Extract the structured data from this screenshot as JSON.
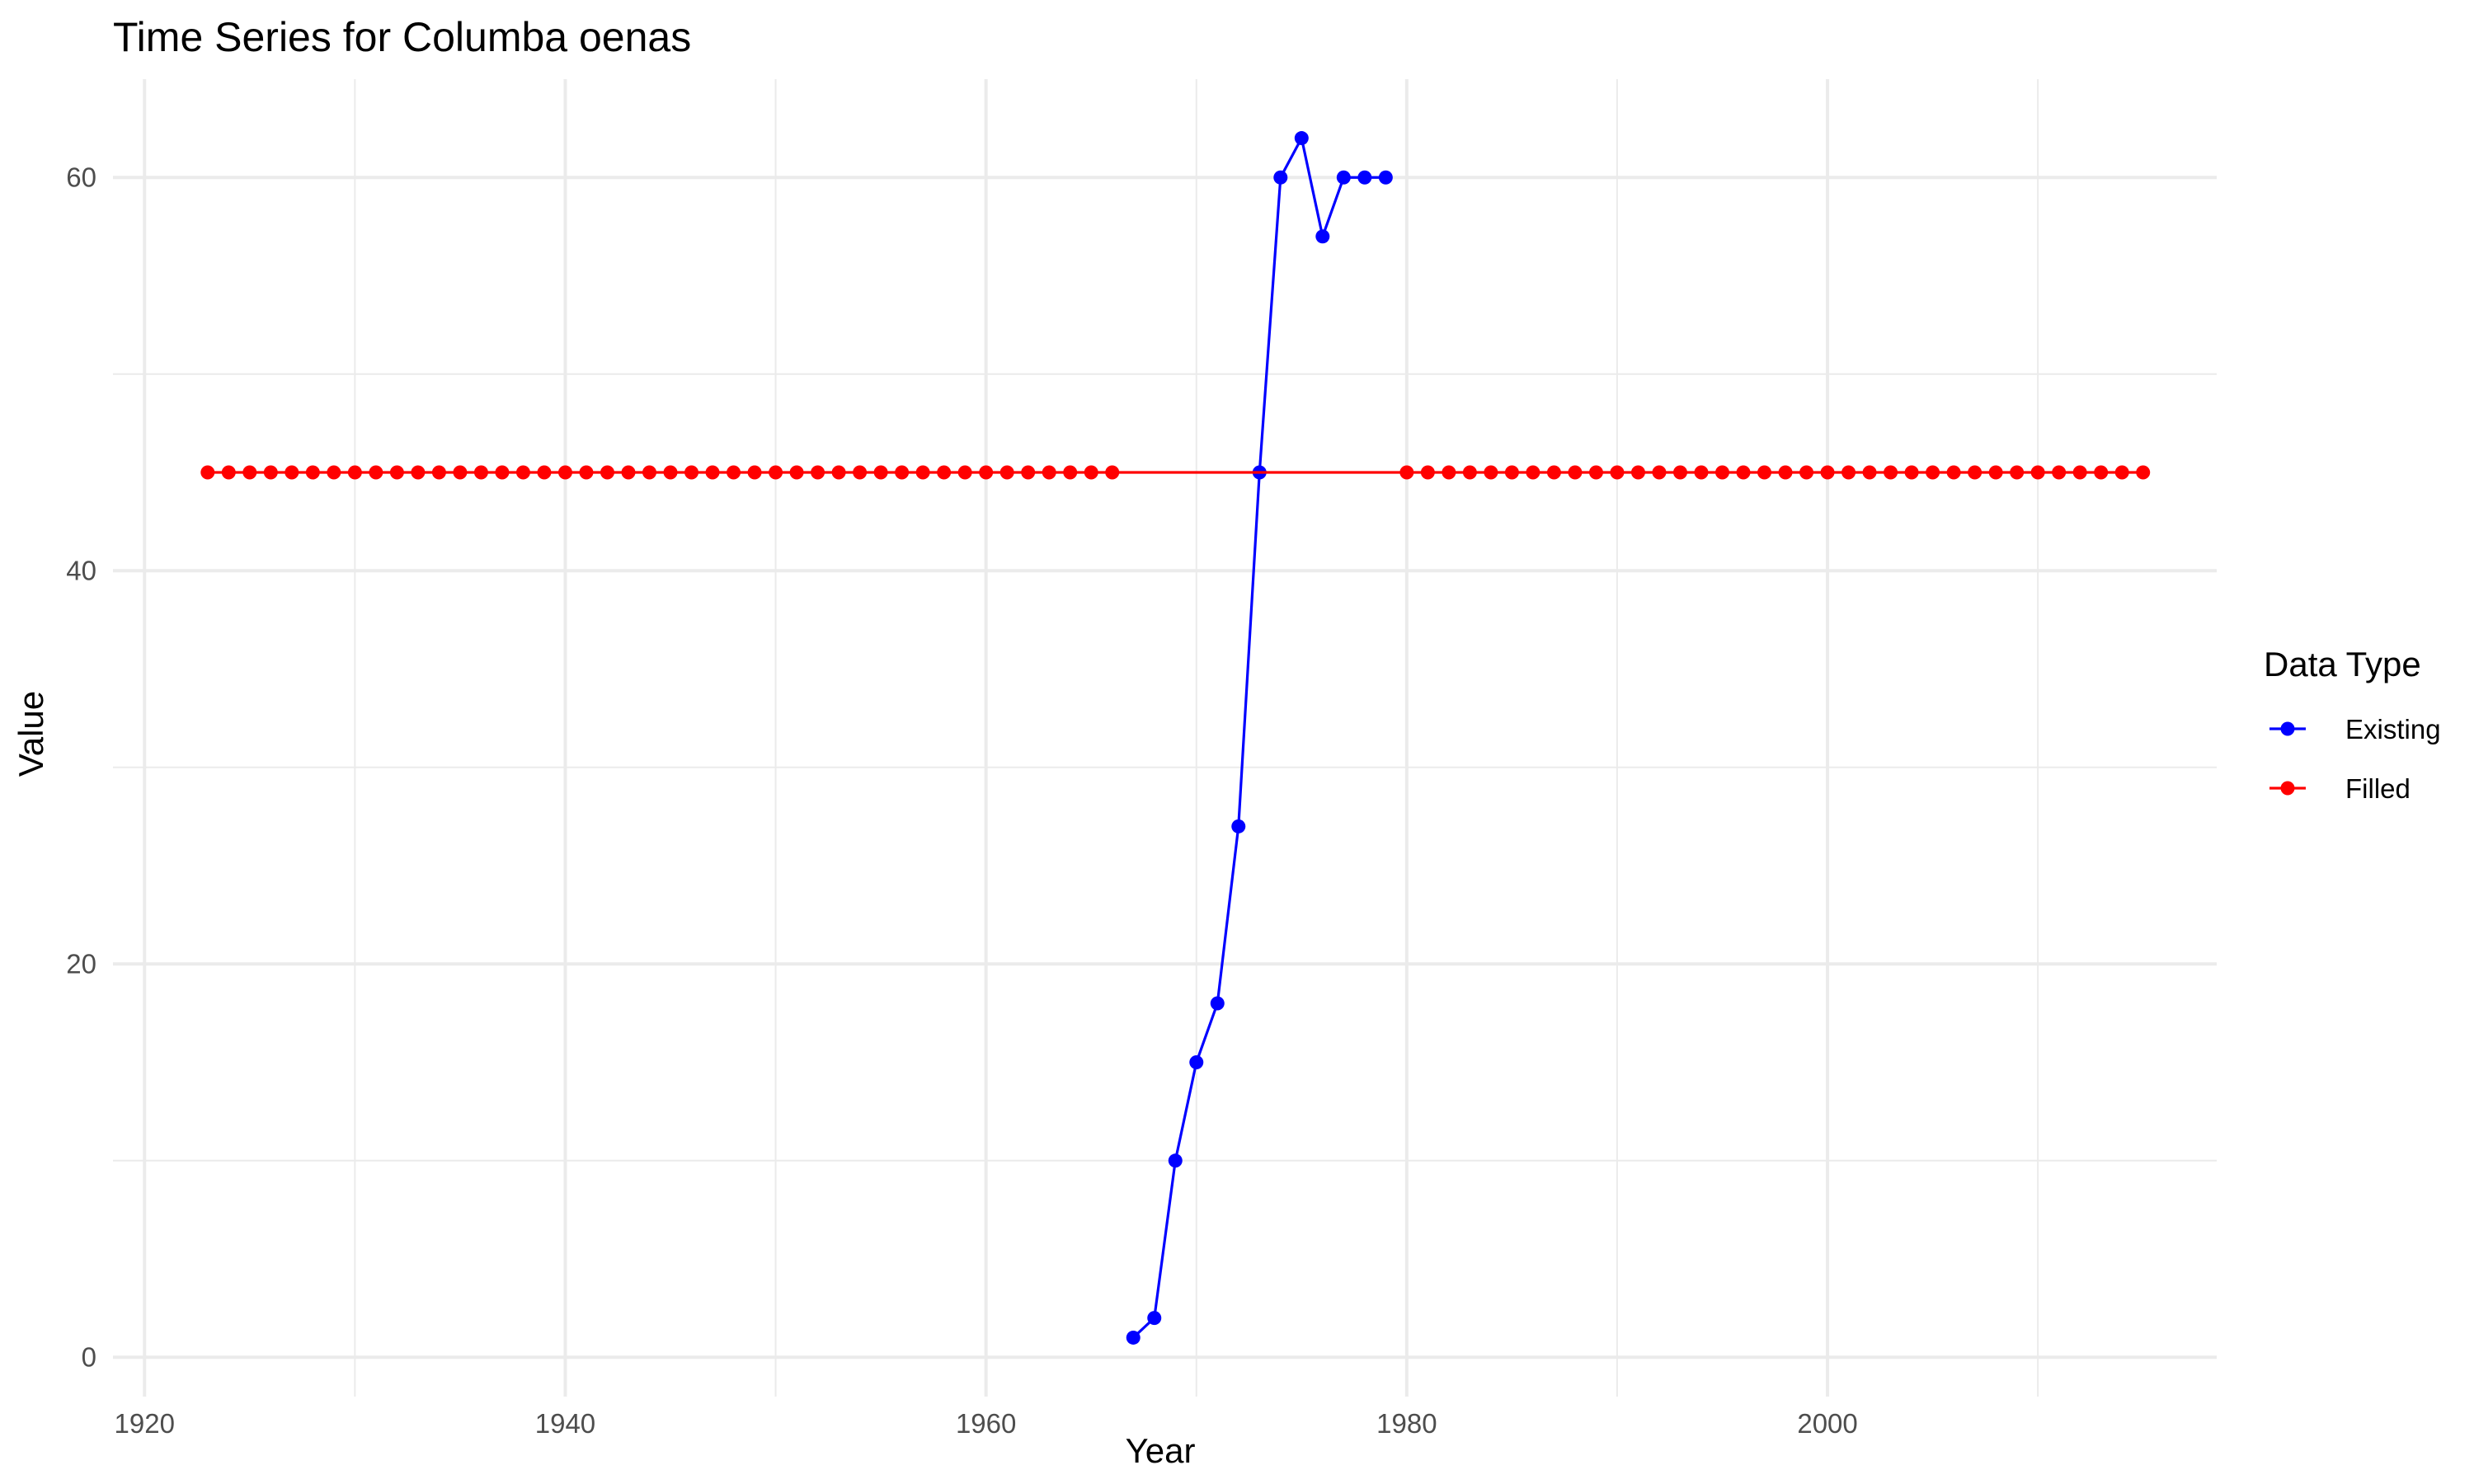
{
  "chart_data": {
    "type": "line",
    "title": "Time Series for Columba oenas",
    "xlabel": "Year",
    "ylabel": "Value",
    "xlim": [
      1918.5,
      2018.5
    ],
    "ylim": [
      -2,
      65
    ],
    "x_ticks": [
      1920,
      1940,
      1960,
      1980,
      2000
    ],
    "x_tick_labels": [
      "1920",
      "1940",
      "1960",
      "1980",
      "2000"
    ],
    "y_ticks": [
      0,
      20,
      40,
      60
    ],
    "y_tick_labels": [
      "0",
      "20",
      "40",
      "60"
    ],
    "grid": true,
    "legend": {
      "title": "Data Type",
      "position": "right",
      "entries": [
        {
          "label": "Existing",
          "color": "#0000ff"
        },
        {
          "label": "Filled",
          "color": "#ff0000"
        }
      ]
    },
    "series": [
      {
        "name": "Existing",
        "color": "#0000ff",
        "x": [
          1967,
          1968,
          1969,
          1970,
          1971,
          1972,
          1973,
          1974,
          1975,
          1976,
          1977,
          1978,
          1979
        ],
        "y": [
          1,
          2,
          10,
          15,
          18,
          27,
          45,
          60,
          62,
          57,
          60,
          60,
          60
        ]
      },
      {
        "name": "Filled",
        "color": "#ff0000",
        "x": [
          1923,
          1924,
          1925,
          1926,
          1927,
          1928,
          1929,
          1930,
          1931,
          1932,
          1933,
          1934,
          1935,
          1936,
          1937,
          1938,
          1939,
          1940,
          1941,
          1942,
          1943,
          1944,
          1945,
          1946,
          1947,
          1948,
          1949,
          1950,
          1951,
          1952,
          1953,
          1954,
          1955,
          1956,
          1957,
          1958,
          1959,
          1960,
          1961,
          1962,
          1963,
          1964,
          1965,
          1966,
          1980,
          1981,
          1982,
          1983,
          1984,
          1985,
          1986,
          1987,
          1988,
          1989,
          1990,
          1991,
          1992,
          1993,
          1994,
          1995,
          1996,
          1997,
          1998,
          1999,
          2000,
          2001,
          2002,
          2003,
          2004,
          2005,
          2006,
          2007,
          2008,
          2009,
          2010,
          2011,
          2012,
          2013,
          2014,
          2015
        ],
        "y": [
          45,
          45,
          45,
          45,
          45,
          45,
          45,
          45,
          45,
          45,
          45,
          45,
          45,
          45,
          45,
          45,
          45,
          45,
          45,
          45,
          45,
          45,
          45,
          45,
          45,
          45,
          45,
          45,
          45,
          45,
          45,
          45,
          45,
          45,
          45,
          45,
          45,
          45,
          45,
          45,
          45,
          45,
          45,
          45,
          45,
          45,
          45,
          45,
          45,
          45,
          45,
          45,
          45,
          45,
          45,
          45,
          45,
          45,
          45,
          45,
          45,
          45,
          45,
          45,
          45,
          45,
          45,
          45,
          45,
          45,
          45,
          45,
          45,
          45,
          45,
          45,
          45,
          45,
          45,
          45
        ],
        "line_segments": [
          [
            1923,
            1966
          ],
          [
            1966,
            1980
          ],
          [
            1980,
            2015
          ]
        ]
      }
    ]
  }
}
